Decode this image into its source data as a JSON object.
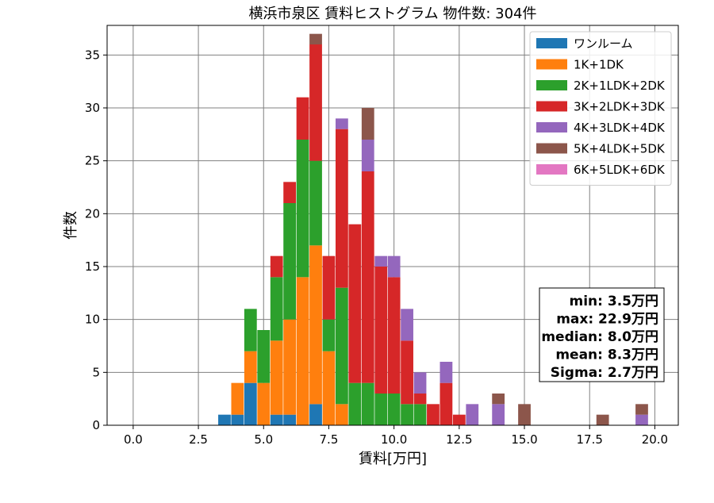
{
  "chart_data": {
    "type": "bar",
    "stacked": true,
    "title": "横浜市泉区 賃料ヒストグラム  物件数: 304件",
    "xlabel": "賃料[万円]",
    "ylabel": "件数",
    "xlim": [
      -1.0,
      20.9
    ],
    "ylim": [
      0,
      37.8
    ],
    "bin_width": 0.48,
    "grid": true,
    "legend_position": "top-right",
    "x_ticks": [
      0.0,
      2.5,
      5.0,
      7.5,
      10.0,
      12.5,
      15.0,
      17.5,
      20.0
    ],
    "x_tick_labels": [
      "0.0",
      "2.5",
      "5.0",
      "7.5",
      "10.0",
      "12.5",
      "15.0",
      "17.5",
      "20.0"
    ],
    "y_ticks": [
      0,
      5,
      10,
      15,
      20,
      25,
      30,
      35
    ],
    "y_tick_labels": [
      "0",
      "5",
      "10",
      "15",
      "20",
      "25",
      "30",
      "35"
    ],
    "bins": [
      3.5,
      4.0,
      4.5,
      5.0,
      5.5,
      6.0,
      6.5,
      7.0,
      7.5,
      8.0,
      8.5,
      9.0,
      9.5,
      10.0,
      10.5,
      11.0,
      11.5,
      12.0,
      12.5,
      13.0,
      14.0,
      15.0,
      18.0,
      19.5
    ],
    "series": [
      {
        "name": "ワンルーム",
        "color": "#1f77b4",
        "values": [
          1,
          1,
          4,
          0,
          1,
          1,
          0,
          2,
          0,
          0,
          0,
          0,
          0,
          0,
          0,
          0,
          0,
          0,
          0,
          0,
          0,
          0,
          0,
          0
        ]
      },
      {
        "name": "1K+1DK",
        "color": "#ff7f0e",
        "values": [
          0,
          3,
          3,
          4,
          7,
          9,
          14,
          15,
          7,
          2,
          0,
          0,
          0,
          0,
          0,
          0,
          0,
          0,
          0,
          0,
          0,
          0,
          0,
          0
        ]
      },
      {
        "name": "2K+1LDK+2DK",
        "color": "#2ca02c",
        "values": [
          0,
          0,
          4,
          5,
          6,
          11,
          13,
          8,
          3,
          11,
          4,
          4,
          3,
          3,
          2,
          2,
          0,
          0,
          0,
          0,
          0,
          0,
          0,
          0
        ]
      },
      {
        "name": "3K+2LDK+3DK",
        "color": "#d62728",
        "values": [
          0,
          0,
          0,
          0,
          2,
          2,
          4,
          11,
          6,
          15,
          15,
          20,
          12,
          11,
          6,
          1,
          2,
          4,
          1,
          0,
          0,
          0,
          0,
          0
        ]
      },
      {
        "name": "4K+3LDK+4DK",
        "color": "#9467bd",
        "values": [
          0,
          0,
          0,
          0,
          0,
          0,
          0,
          0,
          0,
          1,
          0,
          3,
          1,
          2,
          3,
          2,
          0,
          2,
          0,
          2,
          2,
          0,
          0,
          1
        ]
      },
      {
        "name": "5K+4LDK+5DK",
        "color": "#8c564b",
        "values": [
          0,
          0,
          0,
          0,
          0,
          0,
          0,
          1,
          0,
          0,
          0,
          3,
          0,
          0,
          0,
          0,
          0,
          0,
          0,
          0,
          1,
          2,
          1,
          1
        ]
      },
      {
        "name": "6K+5LDK+6DK",
        "color": "#e377c2",
        "values": [
          0,
          0,
          0,
          0,
          0,
          0,
          0,
          0,
          0,
          0,
          0,
          0,
          0,
          0,
          0,
          0,
          0,
          0,
          0,
          0,
          0,
          0,
          0,
          0
        ]
      }
    ],
    "stats": [
      "min: 3.5万円",
      "max: 22.9万円",
      "median: 8.0万円",
      "mean: 8.3万円",
      "Sigma: 2.7万円"
    ]
  }
}
